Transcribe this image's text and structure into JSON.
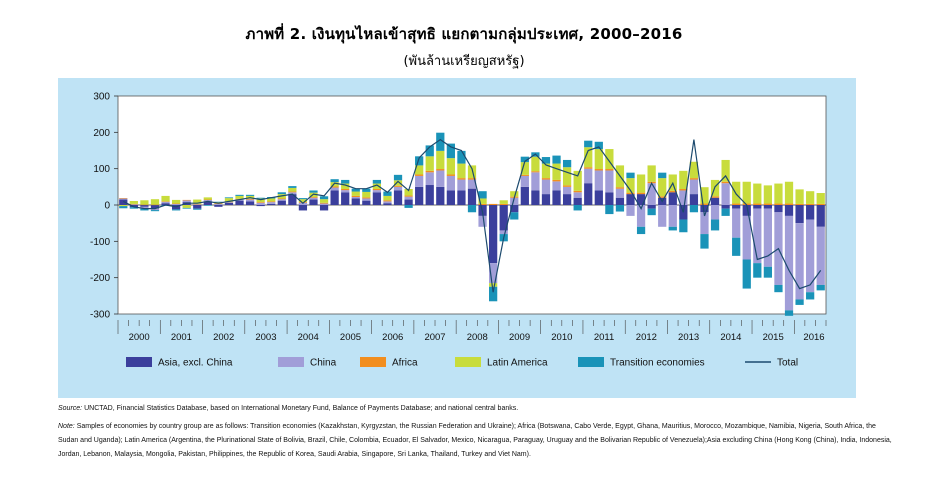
{
  "chart_data": {
    "type": "bar",
    "stacked": true,
    "title": "ภาพที่ 2. เงินทุนไหลเข้าสุทธิ  แยกตามกลุ่มประเทศ, 2000–2016",
    "subtitle": "(พันล้านเหรียญสหรัฐ)",
    "ylim": [
      -300,
      300
    ],
    "yticks": [
      -300,
      -200,
      -100,
      0,
      100,
      200,
      300
    ],
    "years": [
      "2000",
      "2001",
      "2002",
      "2003",
      "2004",
      "2005",
      "2006",
      "2007",
      "2008",
      "2009",
      "2010",
      "2011",
      "2012",
      "2013",
      "2014",
      "2015",
      "2016"
    ],
    "quarters_per_year": 4,
    "legend_position": "bottom",
    "legend": [
      "Asia, excl. China",
      "China",
      "Africa",
      "Latin America",
      "Transition economies",
      "Total"
    ],
    "colors": {
      "asia": "#3b3f9c",
      "china": "#a19ed8",
      "africa": "#f28e1e",
      "latam": "#c8dc3c",
      "transition": "#1a93b8",
      "total": "#1c4a6e"
    },
    "series": [
      {
        "name": "Asia, excl. China",
        "key": "asia",
        "values": [
          15,
          -6,
          -5,
          -10,
          5,
          -12,
          8,
          -10,
          10,
          -5,
          6,
          12,
          10,
          -3,
          3,
          12,
          30,
          -15,
          15,
          -15,
          40,
          35,
          18,
          12,
          35,
          5,
          40,
          15,
          50,
          55,
          50,
          40,
          40,
          45,
          -30,
          -160,
          -70,
          -20,
          50,
          40,
          30,
          40,
          30,
          20,
          60,
          40,
          35,
          20,
          30,
          30,
          -10,
          20,
          35,
          -40,
          30,
          -20,
          20,
          -10,
          -10,
          -30,
          -10,
          -10,
          -20,
          -30,
          -50,
          -40,
          -60
        ]
      },
      {
        "name": "China",
        "key": "china",
        "values": [
          3,
          2,
          -5,
          -4,
          4,
          3,
          5,
          2,
          4,
          3,
          2,
          4,
          5,
          6,
          5,
          4,
          5,
          6,
          5,
          4,
          8,
          6,
          4,
          6,
          6,
          5,
          10,
          8,
          30,
          35,
          45,
          40,
          30,
          25,
          -30,
          -55,
          -10,
          20,
          30,
          50,
          40,
          25,
          20,
          15,
          40,
          55,
          60,
          25,
          -30,
          -60,
          60,
          -60,
          -60,
          40,
          40,
          -60,
          -40,
          60,
          -80,
          -120,
          -150,
          -160,
          -200,
          -260,
          -210,
          -200,
          -160
        ]
      },
      {
        "name": "Africa",
        "key": "africa",
        "values": [
          1,
          1,
          1,
          1,
          1,
          1,
          1,
          1,
          1,
          1,
          1,
          1,
          2,
          2,
          2,
          2,
          2,
          2,
          2,
          2,
          3,
          3,
          3,
          3,
          3,
          3,
          3,
          3,
          4,
          4,
          4,
          4,
          4,
          4,
          3,
          3,
          3,
          3,
          3,
          3,
          4,
          4,
          4,
          4,
          4,
          4,
          4,
          4,
          4,
          4,
          4,
          4,
          4,
          4,
          4,
          4,
          4,
          4,
          4,
          4,
          4,
          4,
          4,
          4,
          3,
          3,
          3
        ]
      },
      {
        "name": "Latin America",
        "key": "latam",
        "values": [
          -3,
          8,
          12,
          15,
          15,
          10,
          -8,
          12,
          6,
          4,
          10,
          8,
          8,
          10,
          8,
          12,
          10,
          8,
          12,
          10,
          12,
          15,
          12,
          15,
          15,
          12,
          15,
          18,
          25,
          40,
          50,
          45,
          40,
          35,
          15,
          -10,
          10,
          15,
          35,
          40,
          40,
          45,
          50,
          55,
          55,
          55,
          55,
          60,
          40,
          50,
          45,
          50,
          45,
          50,
          45,
          45,
          45,
          60,
          60,
          60,
          55,
          50,
          55,
          60,
          40,
          35,
          30
        ]
      },
      {
        "name": "Transition economies",
        "key": "transition",
        "values": [
          -6,
          -4,
          -5,
          -3,
          -2,
          -3,
          -2,
          -3,
          -2,
          1,
          2,
          3,
          3,
          2,
          4,
          5,
          5,
          3,
          6,
          8,
          8,
          10,
          8,
          9,
          10,
          12,
          15,
          -8,
          25,
          30,
          50,
          40,
          35,
          -20,
          20,
          -40,
          -20,
          -20,
          15,
          12,
          18,
          22,
          20,
          -15,
          18,
          20,
          -25,
          -18,
          15,
          -20,
          -18,
          15,
          -10,
          -35,
          -20,
          -40,
          -30,
          -20,
          -50,
          -80,
          -40,
          -30,
          -20,
          -15,
          -15,
          -20,
          -15
        ]
      },
      {
        "name": "Total",
        "key": "total",
        "type": "line",
        "values": [
          10,
          -5,
          -10,
          -10,
          0,
          -5,
          5,
          5,
          10,
          5,
          10,
          15,
          20,
          15,
          20,
          25,
          30,
          5,
          30,
          25,
          60,
          55,
          45,
          45,
          55,
          35,
          65,
          40,
          130,
          160,
          180,
          160,
          150,
          100,
          -20,
          -240,
          -90,
          20,
          120,
          140,
          110,
          100,
          90,
          80,
          150,
          160,
          120,
          80,
          40,
          -10,
          60,
          10,
          60,
          -20,
          180,
          -30,
          50,
          80,
          30,
          0,
          -150,
          -140,
          -120,
          -180,
          -230,
          -220,
          -180
        ]
      }
    ]
  },
  "notes": {
    "source_label": "Source:",
    "source_text": "UNCTAD, Financial Statistics Database, based on International Monetary Fund, Balance of Payments Database; and national central banks.",
    "note_label": "Note:",
    "note_text": "Samples of economies by country group are as follows: Transition economies (Kazakhstan, Kyrgyzstan, the Russian Federation and Ukraine); Africa (Botswana, Cabo Verde, Egypt, Ghana, Mauritius, Morocco, Mozambique, Namibia, Nigeria, South Africa, the Sudan and Uganda); Latin America (Argentina, the Plurinational State of Bolivia, Brazil, Chile, Colombia, Ecuador, El Salvador, Mexico, Nicaragua, Paraguay, Uruguay and the Bolivarian Republic of Venezuela);Asia excluding China (Hong Kong (China), India, Indonesia, Jordan, Lebanon, Malaysia, Mongolia, Pakistan, Philippines, the Republic of Korea, Saudi Arabia, Singapore, Sri Lanka, Thailand, Turkey and Viet Nam)."
  }
}
